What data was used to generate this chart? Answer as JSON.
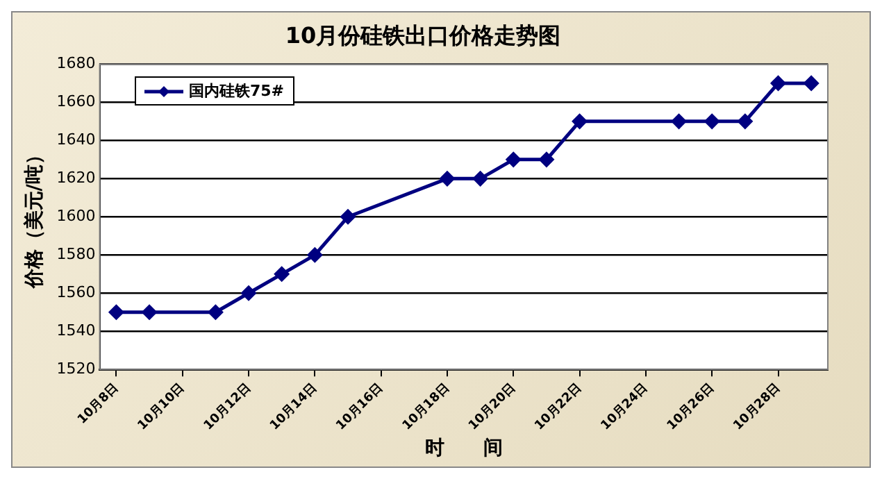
{
  "chart_data": {
    "type": "line",
    "title": "10月份硅铁出口价格走势图",
    "xlabel": "时　　间",
    "ylabel": "价格（美元/吨）",
    "x": [
      "--10-08",
      "--10-09",
      "--10-11",
      "--10-12",
      "--10-13",
      "--10-14",
      "--10-15",
      "--10-18",
      "--10-19",
      "--10-20",
      "--10-21",
      "--10-22",
      "--10-25",
      "--10-26",
      "--10-27",
      "--10-28",
      "--10-29"
    ],
    "series": [
      {
        "name": "国内硅铁75#",
        "color": "#000080",
        "values": [
          1550,
          1550,
          1550,
          1560,
          1570,
          1580,
          1600,
          1620,
          1620,
          1630,
          1630,
          1650,
          1650,
          1650,
          1650,
          1670,
          1670
        ]
      }
    ],
    "xlim": [
      "--10-07T12:00",
      "--10-29T12:00"
    ],
    "xticks": [
      {
        "value": "--10-08",
        "label": "10月8日"
      },
      {
        "value": "--10-10",
        "label": "10月10日"
      },
      {
        "value": "--10-12",
        "label": "10月12日"
      },
      {
        "value": "--10-14",
        "label": "10月14日"
      },
      {
        "value": "--10-16",
        "label": "10月16日"
      },
      {
        "value": "--10-18",
        "label": "10月18日"
      },
      {
        "value": "--10-20",
        "label": "10月20日"
      },
      {
        "value": "--10-22",
        "label": "10月22日"
      },
      {
        "value": "--10-24",
        "label": "10月24日"
      },
      {
        "value": "--10-26",
        "label": "10月26日"
      },
      {
        "value": "--10-28",
        "label": "10月28日"
      }
    ],
    "ylim": [
      1520,
      1680
    ],
    "yticks": [
      1520,
      1540,
      1560,
      1580,
      1600,
      1620,
      1640,
      1660,
      1680
    ],
    "grid": "y",
    "legend": "top left",
    "marker": "diamond",
    "line_style": "solid"
  }
}
